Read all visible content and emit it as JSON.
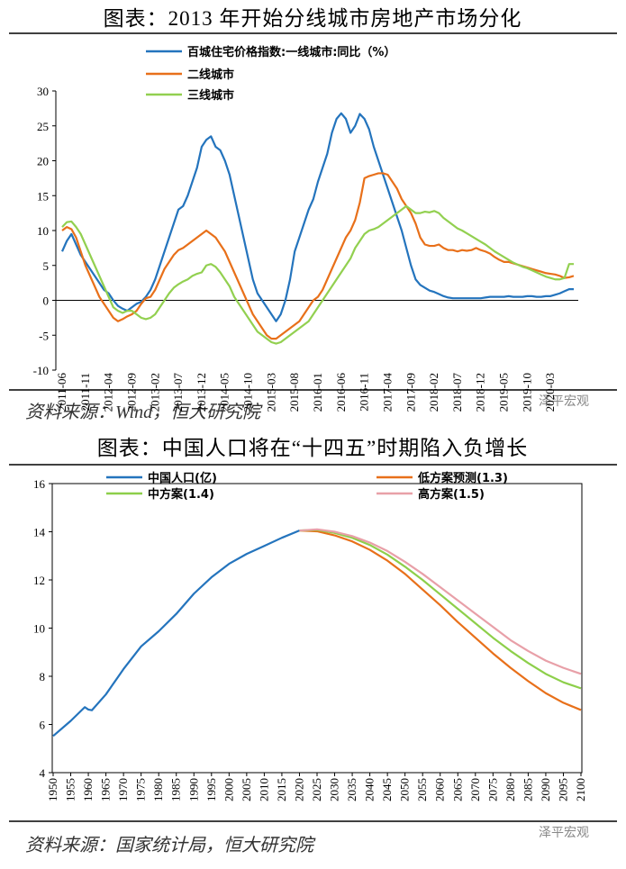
{
  "chart_data": [
    {
      "type": "line",
      "title": "图表：2013 年开始分线城市房地产市场分化",
      "source": "资料来源：Wind，恒大研究院",
      "watermark": "泽平宏观",
      "categories": [
        "2011-06",
        null,
        null,
        null,
        null,
        "2011-11",
        null,
        null,
        null,
        null,
        "2012-04",
        null,
        null,
        null,
        null,
        "2012-09",
        null,
        null,
        null,
        null,
        "2013-02",
        null,
        null,
        null,
        null,
        "2013-07",
        null,
        null,
        null,
        null,
        "2013-12",
        null,
        null,
        null,
        null,
        "2014-05",
        null,
        null,
        null,
        null,
        "2014-10",
        null,
        null,
        null,
        null,
        "2015-03",
        null,
        null,
        null,
        null,
        "2015-08",
        null,
        null,
        null,
        null,
        "2016-01",
        null,
        null,
        null,
        null,
        "2016-06",
        null,
        null,
        null,
        null,
        "2016-11",
        null,
        null,
        null,
        null,
        "2017-04",
        null,
        null,
        null,
        null,
        "2017-09",
        null,
        null,
        null,
        null,
        "2018-02",
        null,
        null,
        null,
        null,
        "2018-07",
        null,
        null,
        null,
        null,
        "2018-12",
        null,
        null,
        null,
        null,
        "2019-05",
        null,
        null,
        null,
        null,
        "2019-10",
        null,
        null,
        null,
        null,
        "2020-03",
        null,
        null,
        null,
        null,
        null
      ],
      "series": [
        {
          "name": "百城住宅价格指数:一线城市:同比（%）",
          "color": "#2474bd",
          "values": [
            7,
            8.5,
            9.5,
            8,
            6.5,
            5.5,
            4.5,
            3.5,
            2.5,
            1.5,
            1,
            0,
            -0.8,
            -1.2,
            -1.5,
            -1,
            -0.5,
            -0.2,
            0.5,
            1.5,
            3,
            5,
            7,
            9,
            11,
            13,
            13.5,
            15,
            17,
            19,
            22,
            23,
            23.5,
            22,
            21.5,
            20,
            18,
            15,
            12,
            9,
            6,
            3,
            1,
            0,
            -1,
            -2,
            -3,
            -2,
            0,
            3,
            7,
            9,
            11,
            13,
            14.5,
            17,
            19,
            21,
            24,
            26,
            26.8,
            26,
            24,
            25,
            26.7,
            26,
            24.5,
            22,
            20,
            18,
            16,
            14,
            12,
            10,
            7.5,
            5,
            3,
            2.2,
            1.8,
            1.4,
            1.2,
            0.9,
            0.6,
            0.4,
            0.3,
            0.3,
            0.3,
            0.3,
            0.3,
            0.3,
            0.3,
            0.4,
            0.5,
            0.5,
            0.5,
            0.5,
            0.6,
            0.5,
            0.5,
            0.5,
            0.6,
            0.6,
            0.5,
            0.5,
            0.6,
            0.6,
            0.8,
            1,
            1.3,
            1.6,
            1.6
          ]
        },
        {
          "name": "二线城市",
          "color": "#e8701a",
          "values": [
            10,
            10.5,
            10.2,
            9,
            7,
            5,
            3.5,
            2,
            0.5,
            -0.5,
            -1.5,
            -2.5,
            -3,
            -2.7,
            -2.3,
            -2,
            -1.5,
            -0.5,
            0.3,
            0.5,
            1.5,
            3,
            4.5,
            5.5,
            6.5,
            7.2,
            7.5,
            8,
            8.5,
            9,
            9.5,
            10,
            9.5,
            9,
            8,
            7,
            5.5,
            4,
            2.5,
            1,
            -0.5,
            -2,
            -3,
            -4,
            -5,
            -5.5,
            -5.5,
            -5,
            -4.5,
            -4,
            -3.5,
            -3,
            -2,
            -1,
            0,
            0.5,
            1.5,
            3,
            4.5,
            6,
            7.5,
            9,
            10,
            11.5,
            14,
            17.5,
            17.8,
            18,
            18.2,
            18.2,
            18,
            17,
            16,
            14.5,
            13.5,
            12.5,
            11,
            9,
            8,
            7.8,
            7.8,
            8,
            7.5,
            7.2,
            7.2,
            7,
            7.2,
            7.1,
            7.2,
            7.5,
            7.2,
            7,
            6.7,
            6.2,
            5.8,
            5.5,
            5.5,
            5.3,
            5.1,
            4.9,
            4.7,
            4.5,
            4.3,
            4.1,
            3.9,
            3.8,
            3.7,
            3.5,
            3.2,
            3.3,
            3.5
          ]
        },
        {
          "name": "三线城市",
          "color": "#92d050",
          "values": [
            10.5,
            11.2,
            11.3,
            10.5,
            9.5,
            8,
            6.5,
            5,
            3.5,
            2,
            0.5,
            -1,
            -1.5,
            -1.8,
            -1.5,
            -1.5,
            -2,
            -2.5,
            -2.7,
            -2.5,
            -2,
            -1,
            0,
            1,
            1.8,
            2.3,
            2.7,
            3,
            3.5,
            3.8,
            4,
            5,
            5.2,
            4.8,
            4,
            3,
            2,
            0.5,
            -0.5,
            -1.5,
            -2.5,
            -3.5,
            -4.5,
            -5,
            -5.5,
            -6,
            -6.2,
            -6,
            -5.5,
            -5,
            -4.5,
            -4,
            -3.5,
            -3,
            -2,
            -1,
            0,
            1,
            2,
            3,
            4,
            5,
            6,
            7.5,
            8.5,
            9.5,
            10,
            10.2,
            10.5,
            11,
            11.5,
            12,
            12.5,
            13,
            13.5,
            13,
            12.5,
            12.5,
            12.7,
            12.6,
            12.8,
            12.5,
            11.8,
            11.3,
            10.8,
            10.3,
            10,
            9.6,
            9.2,
            8.8,
            8.4,
            8,
            7.5,
            7,
            6.6,
            6.2,
            5.8,
            5.4,
            5.1,
            4.8,
            4.6,
            4.3,
            4,
            3.7,
            3.4,
            3.2,
            3,
            3,
            3.2,
            5.2,
            5.2
          ]
        }
      ],
      "ylim": [
        -10,
        30
      ],
      "yticks": [
        -10,
        -5,
        0,
        5,
        10,
        15,
        20,
        25,
        30
      ]
    },
    {
      "type": "line",
      "title": "图表：中国人口将在“十四五”时期陷入负增长",
      "source": "资料来源：国家统计局，恒大研究院",
      "watermark": "泽平宏观",
      "x": [
        1950,
        1955,
        1959,
        1960,
        1961,
        1965,
        1970,
        1975,
        1980,
        1985,
        1990,
        1995,
        2000,
        2005,
        2010,
        2015,
        2020,
        2025,
        2030,
        2035,
        2040,
        2045,
        2050,
        2055,
        2060,
        2065,
        2070,
        2075,
        2080,
        2085,
        2090,
        2095,
        2100
      ],
      "series": [
        {
          "name": "中国人口(亿)",
          "color": "#2474bd",
          "values": [
            5.52,
            6.15,
            6.72,
            6.62,
            6.59,
            7.25,
            8.3,
            9.24,
            9.87,
            10.59,
            11.43,
            12.11,
            12.67,
            13.08,
            13.41,
            13.75,
            14.05,
            null,
            null,
            null,
            null,
            null,
            null,
            null,
            null,
            null,
            null,
            null,
            null,
            null,
            null,
            null,
            null
          ]
        },
        {
          "name": "低方案预测(1.3)",
          "color": "#e8701a",
          "values": [
            null,
            null,
            null,
            null,
            null,
            null,
            null,
            null,
            null,
            null,
            null,
            null,
            null,
            null,
            null,
            null,
            14.05,
            14.02,
            13.85,
            13.6,
            13.25,
            12.8,
            12.25,
            11.6,
            10.95,
            10.25,
            9.6,
            8.95,
            8.35,
            7.8,
            7.3,
            6.9,
            6.6
          ]
        },
        {
          "name": "中方案(1.4)",
          "color": "#8dcf4a",
          "values": [
            null,
            null,
            null,
            null,
            null,
            null,
            null,
            null,
            null,
            null,
            null,
            null,
            null,
            null,
            null,
            null,
            14.05,
            14.08,
            13.95,
            13.75,
            13.45,
            13.05,
            12.55,
            12,
            11.4,
            10.8,
            10.2,
            9.6,
            9.05,
            8.55,
            8.1,
            7.75,
            7.5
          ]
        },
        {
          "name": "高方案(1.5)",
          "color": "#e8a0a8",
          "values": [
            null,
            null,
            null,
            null,
            null,
            null,
            null,
            null,
            null,
            null,
            null,
            null,
            null,
            null,
            null,
            null,
            14.05,
            14.1,
            14,
            13.82,
            13.55,
            13.2,
            12.75,
            12.25,
            11.7,
            11.15,
            10.6,
            10.05,
            9.5,
            9.05,
            8.65,
            8.35,
            8.1
          ]
        }
      ],
      "xlim": [
        1950,
        2100
      ],
      "xticks": [
        1950,
        1955,
        1960,
        1965,
        1970,
        1975,
        1980,
        1985,
        1990,
        1995,
        2000,
        2005,
        2010,
        2015,
        2020,
        2025,
        2030,
        2035,
        2040,
        2045,
        2050,
        2055,
        2060,
        2065,
        2070,
        2075,
        2080,
        2085,
        2090,
        2095,
        2100
      ],
      "ylim": [
        4,
        16
      ],
      "yticks": [
        4,
        6,
        8,
        10,
        12,
        14,
        16
      ]
    }
  ]
}
